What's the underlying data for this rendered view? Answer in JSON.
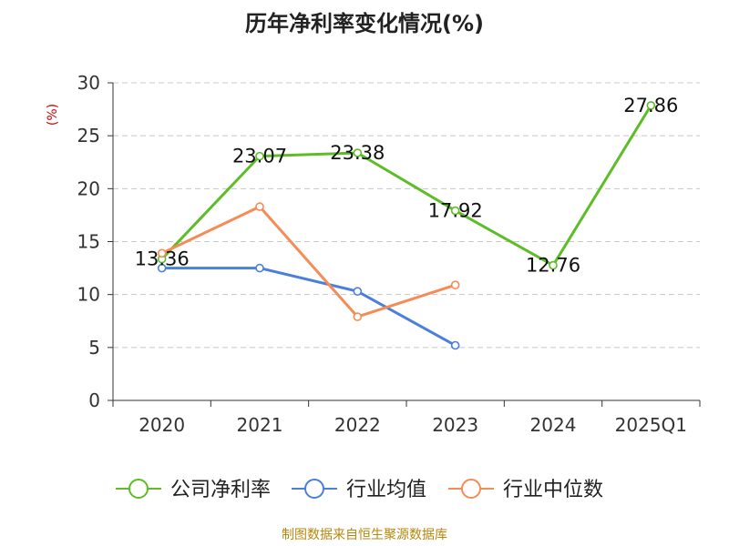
{
  "chart_data": {
    "type": "line",
    "title": "历年净利率变化情况(%)",
    "ylabel": "(%)",
    "xlabel": "",
    "categories": [
      "2020",
      "2021",
      "2022",
      "2023",
      "2024",
      "2025Q1"
    ],
    "ylim": [
      0,
      30
    ],
    "yticks": [
      0,
      5,
      10,
      15,
      20,
      25,
      30
    ],
    "grid": true,
    "legend_position": "bottom",
    "series": [
      {
        "name": "公司净利率",
        "color": "#5cbd26",
        "values": [
          13.36,
          23.07,
          23.38,
          17.92,
          12.76,
          27.86
        ],
        "data_labels": [
          "13.36",
          "23.07",
          "23.38",
          "17.92",
          "12.76",
          "27.86"
        ]
      },
      {
        "name": "行业均值",
        "color": "#4a7fdb",
        "values": [
          12.5,
          12.5,
          10.3,
          5.2,
          null,
          null
        ]
      },
      {
        "name": "行业中位数",
        "color": "#f58b55",
        "values": [
          13.9,
          18.3,
          7.9,
          10.9,
          null,
          null
        ]
      }
    ],
    "source": "制图数据来自恒生聚源数据库"
  },
  "colors": {
    "title": "#222222",
    "ylabel": "#cc0000",
    "axis": "#333333",
    "grid": "#c8c8c8",
    "source": "#b8860b"
  }
}
